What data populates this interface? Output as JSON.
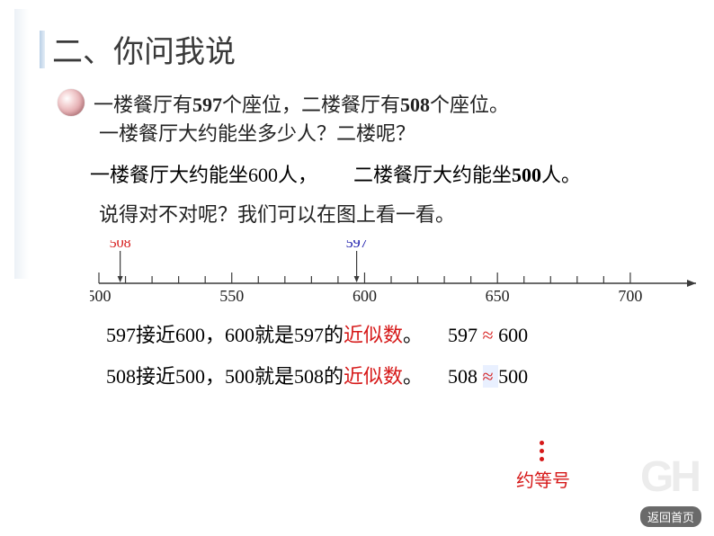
{
  "title": "二、你问我说",
  "line1": {
    "pre": "一楼餐厅有",
    "n1": "597",
    "mid": "个座位，二楼餐厅有",
    "n2": "508",
    "post": "个座位。"
  },
  "line2": "一楼餐厅大约能坐多少人？二楼呢？",
  "line3": {
    "left": "一楼餐厅大约能坐600人，",
    "right_pre": "二楼餐厅大约能坐",
    "right_n": "500",
    "right_post": "人。"
  },
  "line4": "说得对不对呢？我们可以在图上看一看。",
  "numberline": {
    "min": 500,
    "max": 720,
    "display_max": 700,
    "major_labels": [
      "500",
      "550",
      "600",
      "650",
      "700"
    ],
    "major_positions": [
      500,
      550,
      600,
      650,
      700
    ],
    "tick_step": 10,
    "markers": [
      {
        "value": 508,
        "label": "508",
        "color": "#d61818"
      },
      {
        "value": 597,
        "label": "597",
        "color": "#1010a8"
      }
    ],
    "axis_color": "#3a3a3a",
    "label_fontsize": 18
  },
  "conclusion1": {
    "t1": "597接近600，600就是597的",
    "red": "近似数",
    "t2": "。",
    "expr_l": "597",
    "expr_r": "600"
  },
  "conclusion2": {
    "t1": "508接近500，500就是508的",
    "red": "近似数",
    "t2": "。",
    "expr_l": "508",
    "expr_r": "500"
  },
  "approx_note": "约等号",
  "home_button": "返回首页",
  "watermark": "GH"
}
